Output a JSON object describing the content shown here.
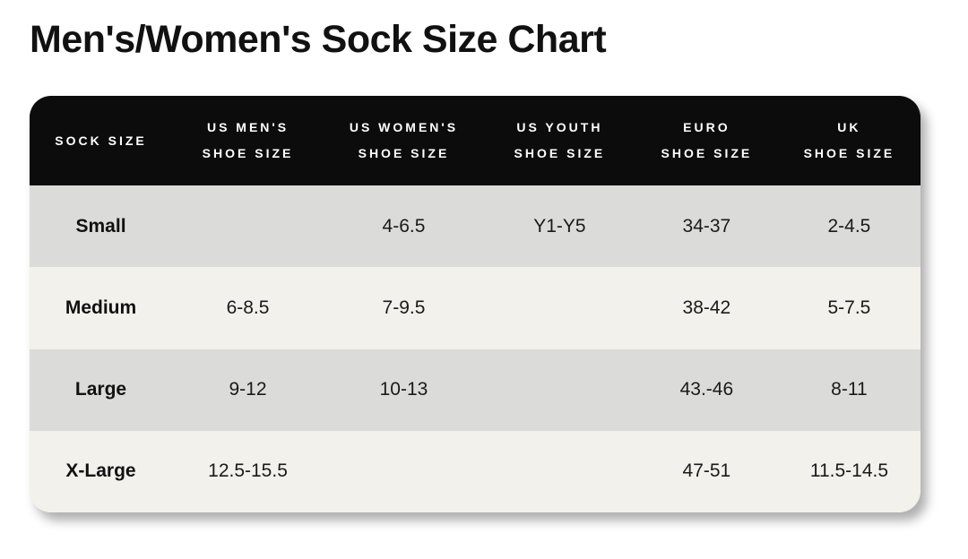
{
  "page_title": "Men's/Women's Sock Size Chart",
  "colors": {
    "header_bg": "#0c0c0c",
    "header_text": "#ffffff",
    "row_gray_bg": "#dbdbd9",
    "row_offwhite_bg": "#f2f1ec",
    "title_color": "#111111",
    "page_bg": "#ffffff"
  },
  "chart_data": {
    "type": "table",
    "title": "Men's/Women's Sock Size Chart",
    "columns": [
      {
        "key": "sock_size",
        "lines": [
          "SOCK SIZE"
        ]
      },
      {
        "key": "us_mens",
        "lines": [
          "US MEN'S",
          "SHOE SIZE"
        ]
      },
      {
        "key": "us_womens",
        "lines": [
          "US WOMEN'S",
          "SHOE SIZE"
        ]
      },
      {
        "key": "us_youth",
        "lines": [
          "US YOUTH",
          "SHOE SIZE"
        ]
      },
      {
        "key": "euro",
        "lines": [
          "EURO",
          "SHOE SIZE"
        ]
      },
      {
        "key": "uk",
        "lines": [
          "UK",
          "SHOE SIZE"
        ]
      }
    ],
    "rows": [
      {
        "label": "Small",
        "values": [
          "",
          "4-6.5",
          "Y1-Y5",
          "34-37",
          "2-4.5"
        ]
      },
      {
        "label": "Medium",
        "values": [
          "6-8.5",
          "7-9.5",
          "",
          "38-42",
          "5-7.5"
        ]
      },
      {
        "label": "Large",
        "values": [
          "9-12",
          "10-13",
          "",
          "43.-46",
          "8-11"
        ]
      },
      {
        "label": "X-Large",
        "values": [
          "12.5-15.5",
          "",
          "",
          "47-51",
          "11.5-14.5"
        ]
      }
    ]
  }
}
